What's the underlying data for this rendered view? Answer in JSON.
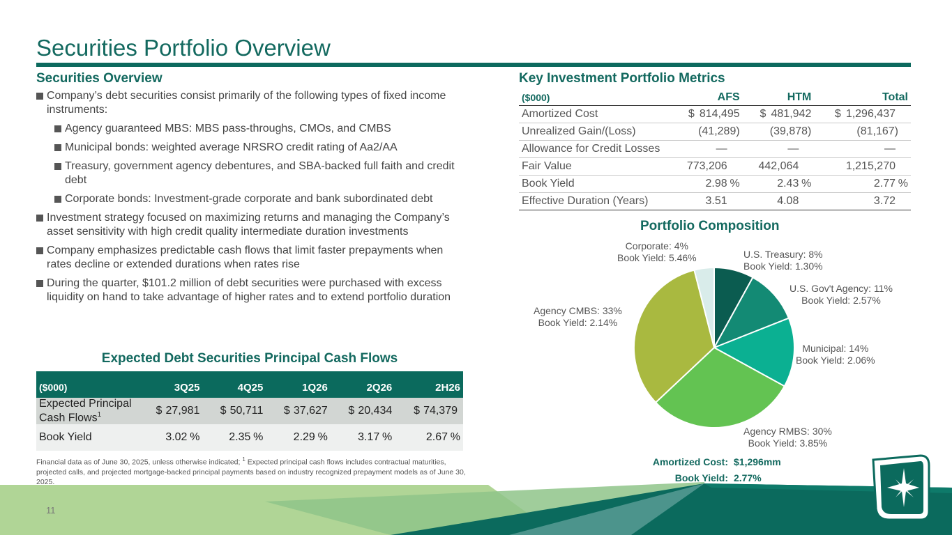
{
  "title": "Securities Portfolio Overview",
  "overview": {
    "heading": "Securities Overview",
    "bullets": [
      "Company’s debt securities consist primarily of the following types of fixed income instruments:",
      "Agency guaranteed MBS: MBS pass-throughs, CMOs, and CMBS",
      "Municipal bonds: weighted average NRSRO credit rating of Aa2/AA",
      "Treasury, government agency debentures, and SBA-backed full faith and credit debt",
      "Corporate bonds: Investment-grade corporate and bank subordinated debt",
      "Investment strategy focused on maximizing returns and managing the Company’s asset sensitivity with high credit quality intermediate duration investments",
      "Company emphasizes predictable cash flows that limit faster prepayments when rates decline or extended durations when rates rise",
      "During the quarter, $101.2 million of debt securities were purchased with excess liquidity on hand to take advantage of higher rates and to extend portfolio duration"
    ]
  },
  "metrics": {
    "heading": "Key Investment Portfolio Metrics",
    "headers": [
      "($000)",
      "AFS",
      "HTM",
      "Total"
    ],
    "rows": [
      {
        "label": "Amortized Cost",
        "cur": "$",
        "afs": "814,495",
        "htm": "481,942",
        "total": "1,296,437"
      },
      {
        "label": "Unrealized Gain/(Loss)",
        "afs": "(41,289)",
        "htm": "(39,878)",
        "total": "(81,167)"
      },
      {
        "label": "Allowance for Credit Losses",
        "afs": "—",
        "htm": "—",
        "total": "—"
      },
      {
        "label": "Fair Value",
        "afs": "773,206",
        "htm": "442,064",
        "total": "1,215,270"
      },
      {
        "label": "Book Yield",
        "afs": "2.98",
        "htm": "2.43",
        "total": "2.77",
        "pct": "%"
      },
      {
        "label": "Effective Duration (Years)",
        "afs": "3.51",
        "htm": "4.08",
        "total": "3.72"
      }
    ]
  },
  "cashflows": {
    "title": "Expected Debt Securities Principal Cash Flows",
    "headers": [
      "($000)",
      "3Q25",
      "4Q25",
      "1Q26",
      "2Q26",
      "2H26"
    ],
    "row1_label_a": "Expected Principal",
    "row1_label_b": "Cash Flows",
    "row1_sup": "1",
    "cur": "$",
    "row1": [
      "27,981",
      "50,711",
      "37,627",
      "20,434",
      "74,379"
    ],
    "row2_label": "Book Yield",
    "pct": "%",
    "row2": [
      "3.02",
      "2.35",
      "2.29",
      "3.17",
      "2.67"
    ]
  },
  "footnote": {
    "text_a": "Financial data as of June 30, 2025, unless otherwise indicated; ",
    "sup": "1",
    "text_b": " Expected principal cash flows includes contractual maturities, projected calls, and projected mortgage-backed principal payments based on industry recognized prepayment models as of June 30, 2025."
  },
  "chart_data": {
    "type": "pie",
    "title": "Portfolio Composition",
    "slices": [
      {
        "name": "U.S. Treasury",
        "pct_label": "8%",
        "yield_label": "Book Yield: 1.30%",
        "value": 8,
        "color": "#0b5c50"
      },
      {
        "name": "U.S. Gov't Agency",
        "pct_label": "11%",
        "yield_label": "Book Yield: 2.57%",
        "value": 11,
        "color": "#138a74"
      },
      {
        "name": "Municipal",
        "pct_label": "14%",
        "yield_label": "Book Yield: 2.06%",
        "value": 14,
        "color": "#0bb092"
      },
      {
        "name": "Agency RMBS",
        "pct_label": "30%",
        "yield_label": "Book Yield: 3.85%",
        "value": 30,
        "color": "#63c352"
      },
      {
        "name": "Agency CMBS",
        "pct_label": "33%",
        "yield_label": "Book Yield: 2.14%",
        "value": 33,
        "color": "#a9b940"
      },
      {
        "name": "Corporate",
        "pct_label": "4%",
        "yield_label": "Book Yield: 5.46%",
        "value": 4,
        "color": "#d9ecea"
      }
    ],
    "summary": [
      {
        "label": "Amortized Cost:",
        "value": "$1,296mm"
      },
      {
        "label": "Book Yield:",
        "value": "2.77%"
      }
    ]
  },
  "page_number": "11",
  "colors": {
    "brand": "#0b6a5d",
    "accent_light": "#a3ce8c"
  },
  "logo_icon": "bank-star-logo-icon"
}
